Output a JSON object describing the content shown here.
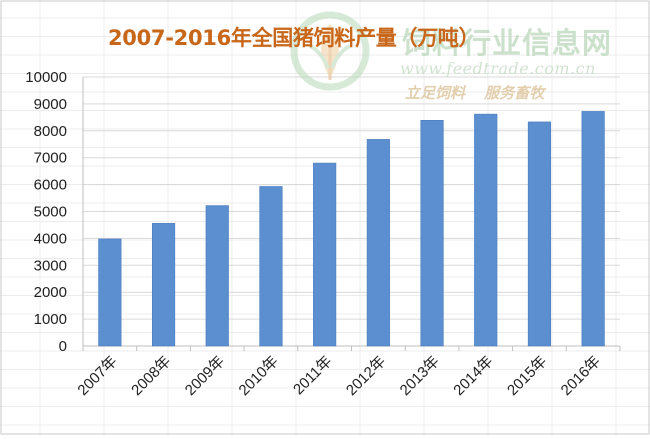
{
  "watermark": {
    "site_name": "饲料行业信息网",
    "url": "www.feedtrade.com.cn",
    "slogan": "立足饲料  服务畜牧",
    "logo_icon": "wheat-leaf-logo-icon"
  },
  "colors": {
    "bar": "#5b8fd0",
    "bar_edge": "#4a7cbd",
    "title": "#c8661a",
    "grid_major": "#d9d9d9",
    "sheet_grid": "#ececec",
    "axis_text": "#222222"
  },
  "chart_data": {
    "type": "bar",
    "title": "2007-2016年全国猪饲料产量（万吨）",
    "xlabel": "",
    "ylabel": "",
    "categories": [
      "2007年",
      "2008年",
      "2009年",
      "2010年",
      "2011年",
      "2012年",
      "2013年",
      "2014年",
      "2015年",
      "2016年"
    ],
    "values": [
      3980,
      4560,
      5220,
      5930,
      6800,
      7680,
      8390,
      8620,
      8330,
      8720
    ],
    "ylim": [
      0,
      10000
    ],
    "yticks": [
      0,
      1000,
      2000,
      3000,
      4000,
      5000,
      6000,
      7000,
      8000,
      9000,
      10000
    ],
    "grid": true,
    "legend": "none"
  }
}
